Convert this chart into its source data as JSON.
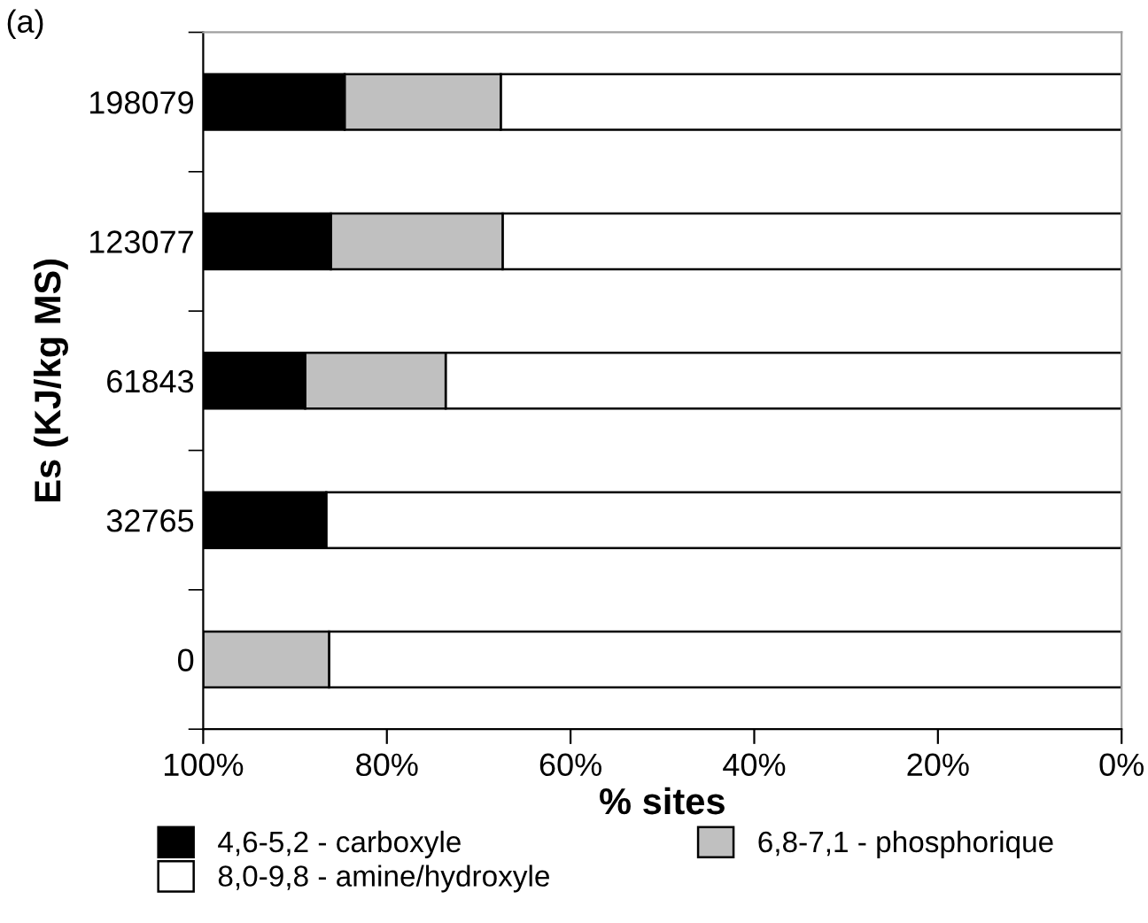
{
  "chart_data": {
    "type": "bar",
    "orientation": "horizontal",
    "stacked": true,
    "title": "(a)",
    "xlabel": "% sites",
    "ylabel": "Es (KJ/kg MS)",
    "categories": [
      "198079",
      "123077",
      "61843",
      "32765",
      "0"
    ],
    "series": [
      {
        "name": "8,0-9,8 - amine/hydroxyle",
        "color": "#ffffff",
        "values": [
          67.6,
          67.4,
          73.6,
          86.6,
          86.3
        ]
      },
      {
        "name": "6,8-7,1 - phosphorique",
        "color": "#c0c0c0",
        "values": [
          17.0,
          18.7,
          15.3,
          null,
          13.7
        ]
      },
      {
        "name": "4,6-5,2 - carboxyle",
        "color": "#000000",
        "values": [
          15.4,
          13.9,
          11.1,
          13.4,
          null
        ]
      }
    ],
    "xlim": [
      100,
      0
    ],
    "xticks": [
      {
        "value": 100,
        "label": "100%"
      },
      {
        "value": 80,
        "label": "80%"
      },
      {
        "value": 60,
        "label": "60%"
      },
      {
        "value": 40,
        "label": "40%"
      },
      {
        "value": 20,
        "label": "20%"
      },
      {
        "value": 0,
        "label": "0%"
      }
    ],
    "grid": false,
    "legend": "bottom"
  }
}
